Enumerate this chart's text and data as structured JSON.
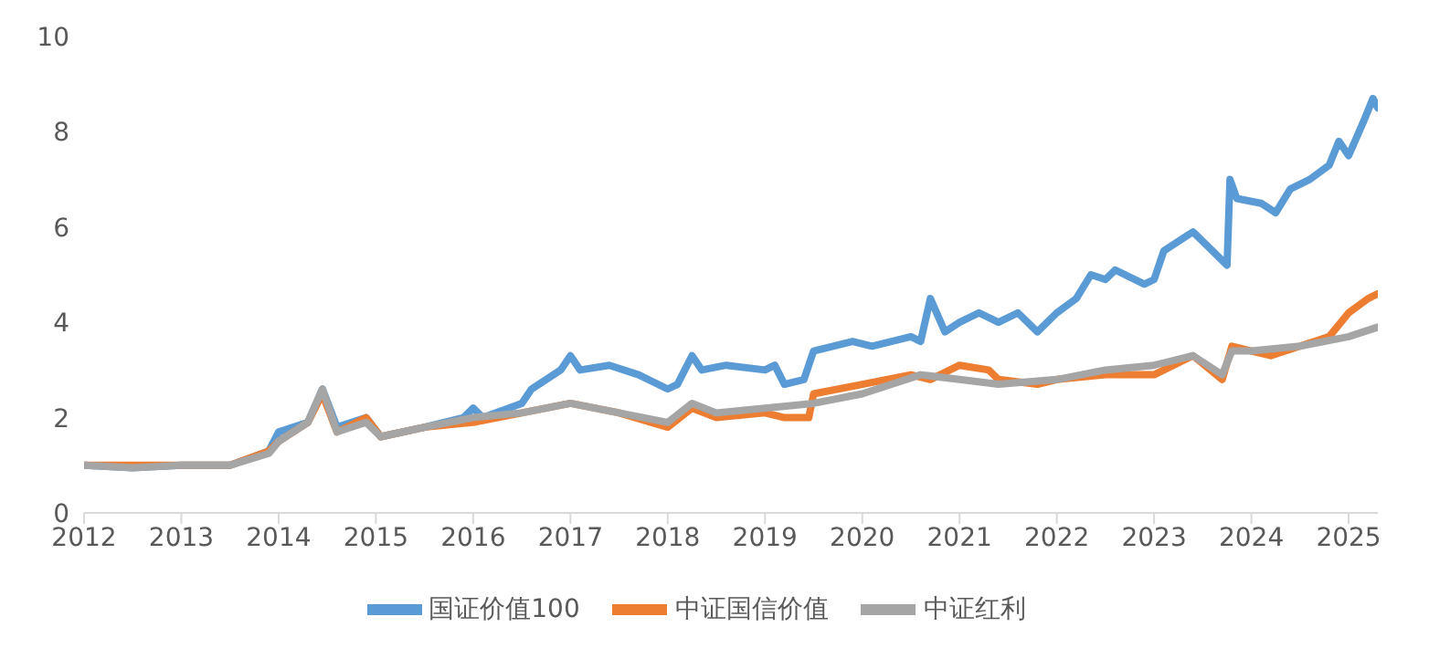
{
  "chart_data": {
    "type": "line",
    "xlim": [
      2012,
      2025.3
    ],
    "xticks": [
      2012,
      2013,
      2014,
      2015,
      2016,
      2017,
      2018,
      2019,
      2020,
      2021,
      2022,
      2023,
      2024,
      2025
    ],
    "ylim": [
      0,
      10
    ],
    "yticks": [
      0,
      2,
      4,
      6,
      8,
      10
    ],
    "grid": false,
    "legend": "bottom",
    "marker": "none",
    "line_style": "solid",
    "series": [
      {
        "name": "国证价值100",
        "color": "#5b9bd5",
        "x": [
          2012,
          2012.5,
          2013,
          2013.5,
          2013.9,
          2014,
          2014.3,
          2014.45,
          2014.6,
          2014.9,
          2015.05,
          2015.5,
          2015.9,
          2016,
          2016.1,
          2016.5,
          2016.6,
          2016.9,
          2017,
          2017.1,
          2017.4,
          2017.7,
          2018,
          2018.1,
          2018.25,
          2018.35,
          2018.6,
          2019,
          2019.1,
          2019.2,
          2019.4,
          2019.5,
          2019.9,
          2020.1,
          2020.5,
          2020.6,
          2020.7,
          2020.85,
          2021,
          2021.2,
          2021.4,
          2021.6,
          2021.8,
          2022,
          2022.2,
          2022.35,
          2022.5,
          2022.6,
          2022.9,
          2023,
          2023.1,
          2023.4,
          2023.6,
          2023.75,
          2023.78,
          2023.85,
          2024.1,
          2024.25,
          2024.4,
          2024.6,
          2024.8,
          2024.9,
          2025,
          2025.15,
          2025.25,
          2025.3
        ],
        "values": [
          1.0,
          0.95,
          1.0,
          1.0,
          1.3,
          1.7,
          1.9,
          2.6,
          1.8,
          2.0,
          1.6,
          1.8,
          2.0,
          2.2,
          2.0,
          2.3,
          2.6,
          3.0,
          3.3,
          3.0,
          3.1,
          2.9,
          2.6,
          2.7,
          3.3,
          3.0,
          3.1,
          3.0,
          3.1,
          2.7,
          2.8,
          3.4,
          3.6,
          3.5,
          3.7,
          3.6,
          4.5,
          3.8,
          4.0,
          4.2,
          4.0,
          4.2,
          3.8,
          4.2,
          4.5,
          5.0,
          4.9,
          5.1,
          4.8,
          4.9,
          5.5,
          5.9,
          5.5,
          5.2,
          7.0,
          6.6,
          6.5,
          6.3,
          6.8,
          7.0,
          7.3,
          7.8,
          7.5,
          8.2,
          8.7,
          8.5
        ]
      },
      {
        "name": "中证国信价值",
        "color": "#ed7d31",
        "x": [
          2012,
          2012.5,
          2013,
          2013.5,
          2013.9,
          2014,
          2014.3,
          2014.45,
          2014.6,
          2014.9,
          2015.05,
          2015.5,
          2016,
          2016.5,
          2017,
          2017.5,
          2018,
          2018.25,
          2018.5,
          2019,
          2019.2,
          2019.45,
          2019.5,
          2020,
          2020.5,
          2020.7,
          2021,
          2021.3,
          2021.4,
          2021.8,
          2022,
          2022.5,
          2023,
          2023.2,
          2023.4,
          2023.7,
          2023.8,
          2024,
          2024.2,
          2024.5,
          2024.8,
          2025,
          2025.2,
          2025.3
        ],
        "values": [
          1.0,
          1.0,
          1.0,
          1.0,
          1.3,
          1.5,
          1.9,
          2.5,
          1.7,
          2.0,
          1.6,
          1.8,
          1.9,
          2.1,
          2.3,
          2.1,
          1.8,
          2.2,
          2.0,
          2.1,
          2.0,
          2.0,
          2.5,
          2.7,
          2.9,
          2.8,
          3.1,
          3.0,
          2.8,
          2.7,
          2.8,
          2.9,
          2.9,
          3.1,
          3.3,
          2.8,
          3.5,
          3.4,
          3.3,
          3.5,
          3.7,
          4.2,
          4.5,
          4.6
        ]
      },
      {
        "name": "中证红利",
        "color": "#a5a5a5",
        "x": [
          2012,
          2012.5,
          2013,
          2013.5,
          2013.9,
          2014,
          2014.3,
          2014.45,
          2014.6,
          2014.9,
          2015.05,
          2015.5,
          2016,
          2016.5,
          2017,
          2017.5,
          2018,
          2018.25,
          2018.5,
          2019,
          2019.5,
          2020,
          2020.6,
          2021,
          2021.4,
          2022,
          2022.5,
          2023,
          2023.4,
          2023.7,
          2023.8,
          2024,
          2024.5,
          2025,
          2025.3
        ],
        "values": [
          1.0,
          0.95,
          1.0,
          1.0,
          1.25,
          1.5,
          1.9,
          2.6,
          1.7,
          1.9,
          1.6,
          1.8,
          2.0,
          2.1,
          2.3,
          2.1,
          1.9,
          2.3,
          2.1,
          2.2,
          2.3,
          2.5,
          2.9,
          2.8,
          2.7,
          2.8,
          3.0,
          3.1,
          3.3,
          2.9,
          3.4,
          3.4,
          3.5,
          3.7,
          3.9
        ]
      }
    ]
  }
}
